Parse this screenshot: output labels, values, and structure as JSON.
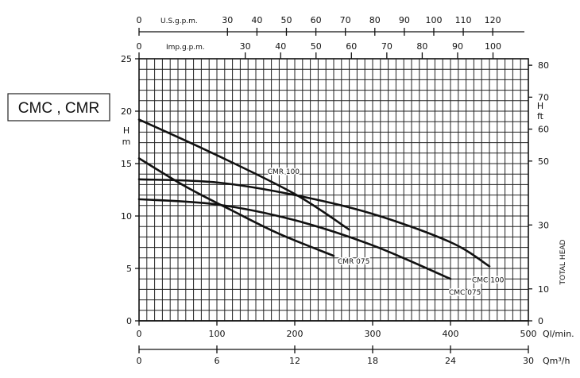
{
  "chart_data": {
    "type": "line",
    "label_box": "CMC , CMR",
    "x_primary": {
      "label": "Ql/min.",
      "range": [
        0,
        500
      ],
      "ticks": [
        0,
        100,
        200,
        300,
        400,
        500
      ]
    },
    "x_m3h": {
      "label": "Qm³/h",
      "range": [
        0,
        30
      ],
      "ticks": [
        0,
        6,
        12,
        18,
        24,
        30
      ]
    },
    "x_us_gpm": {
      "label": "U.S.g.p.m.",
      "ticks": [
        0,
        30,
        40,
        50,
        60,
        70,
        80,
        90,
        100,
        110,
        120
      ]
    },
    "x_imp_gpm": {
      "label": "Imp.g.p.m.",
      "ticks": [
        0,
        30,
        40,
        50,
        60,
        70,
        80,
        90,
        100
      ]
    },
    "y_left": {
      "label": "H m",
      "range": [
        0,
        25
      ],
      "ticks": [
        0,
        5,
        10,
        15,
        20,
        25
      ]
    },
    "y_right": {
      "label": "H ft",
      "title": "TOTAL HEAD",
      "ticks": [
        0,
        10,
        30,
        50,
        60,
        70,
        80
      ]
    },
    "grid": true,
    "series": [
      {
        "name": "CMR 100",
        "x": [
          0,
          100,
          200,
          270
        ],
        "y": [
          19.2,
          15.8,
          12.1,
          8.7
        ]
      },
      {
        "name": "CMR 075",
        "x": [
          0,
          60,
          120,
          180,
          250
        ],
        "y": [
          15.5,
          12.8,
          10.5,
          8.3,
          6.2
        ]
      },
      {
        "name": "CMC 100",
        "x": [
          0,
          100,
          200,
          300,
          400,
          450
        ],
        "y": [
          13.5,
          13.2,
          12.0,
          10.2,
          7.5,
          5.2
        ]
      },
      {
        "name": "CMC 075",
        "x": [
          0,
          100,
          200,
          300,
          400
        ],
        "y": [
          11.6,
          11.1,
          9.6,
          7.2,
          4.0
        ]
      }
    ]
  }
}
